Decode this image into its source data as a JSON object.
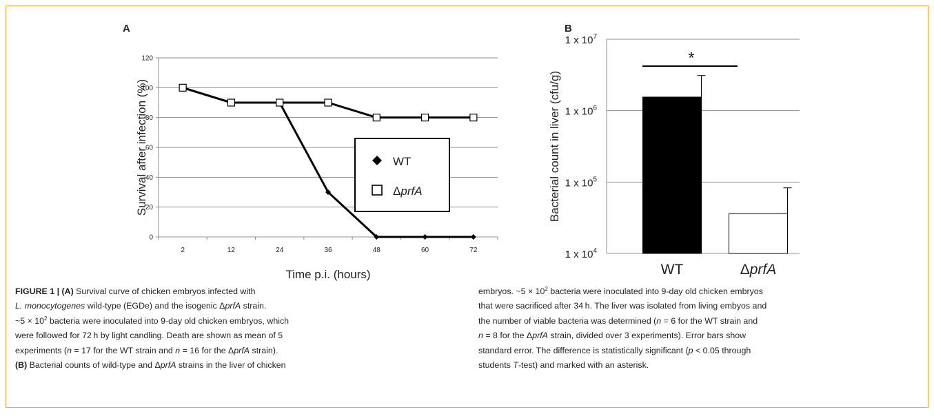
{
  "figure_border_color": "#e8a93a",
  "chart_data": [
    {
      "type": "line",
      "panel_label": "A",
      "xlabel": "Time p.i. (hours)",
      "ylabel": "Survival after infection (%)",
      "categories": [
        "2",
        "12",
        "24",
        "36",
        "48",
        "60",
        "72"
      ],
      "yticks": [
        "0",
        "20",
        "40",
        "60",
        "80",
        "100",
        "120"
      ],
      "ylim": [
        0,
        120
      ],
      "grid": true,
      "legend_position": "center-right",
      "series": [
        {
          "name": "WT",
          "marker": "diamond-filled",
          "values": [
            100,
            90,
            90,
            30,
            0,
            0,
            0
          ]
        },
        {
          "name": "ΔprfA",
          "name_prefix": "Δ",
          "name_italic": "prfA",
          "marker": "square-open",
          "values": [
            100,
            90,
            90,
            90,
            80,
            80,
            80
          ]
        }
      ]
    },
    {
      "type": "bar",
      "panel_label": "B",
      "ylabel": "Bacterial count in liver (cfu/g)",
      "y_scale": "log",
      "ylim": [
        10000,
        10000000
      ],
      "yticks": [
        {
          "base": "1 x 10",
          "exp": "4",
          "value": 10000
        },
        {
          "base": "1 x 10",
          "exp": "5",
          "value": 100000
        },
        {
          "base": "1 x 10",
          "exp": "6",
          "value": 1000000
        },
        {
          "base": "1 x 10",
          "exp": "7",
          "value": 10000000
        }
      ],
      "grid": true,
      "categories": [
        "WT",
        "ΔprfA"
      ],
      "category_parts": [
        {
          "prefix": "",
          "italic": "",
          "plain": "WT"
        },
        {
          "prefix": "Δ",
          "italic": "prfA",
          "plain": ""
        }
      ],
      "values": [
        1550000,
        36000
      ],
      "error_upper": [
        3100000,
        83000
      ],
      "bar_fills": [
        "#000000",
        "#ffffff"
      ],
      "significance_marker": "*"
    }
  ],
  "caption": {
    "left": [
      [
        "",
        "FIGURE 1 | (A)",
        " Survival curve of chicken embryos infected with"
      ],
      [
        "",
        "L. monocytogenes",
        " wild-type (EGDe) and the isogenic Δ",
        "prfA",
        " strain."
      ],
      [
        "~5 × 10",
        "2",
        " bacteria were inoculated into 9-day old chicken embryos, which"
      ],
      [
        "were followed for 72 h by light candling. Death are shown as mean of 5"
      ],
      [
        "experiments (",
        "n",
        " = 17 for the WT strain and ",
        "n",
        " = 16 for the Δ",
        "prfA",
        " strain)."
      ],
      [
        "",
        "(B)",
        " Bacterial counts of wild-type and Δ",
        "prfA",
        " strains in the liver of chicken"
      ]
    ],
    "right": [
      [
        "embryos. ~5 × 10",
        "2",
        " bacteria were inoculated into 9-day old chicken embryos"
      ],
      [
        "that were sacrificed after 34 h. The liver was isolated from living embyos and"
      ],
      [
        "the number of viable bacteria was determined (",
        "n",
        " = 6 for the WT strain and"
      ],
      [
        "",
        "n",
        " = 8 for the Δ",
        "prfA",
        " strain, divided over 3 experiments). Error bars show"
      ],
      [
        "standard error. The difference is statistically significant (",
        "p",
        " < 0.05 through"
      ],
      [
        "students ",
        "T",
        "-test) and marked with an asterisk."
      ]
    ]
  }
}
